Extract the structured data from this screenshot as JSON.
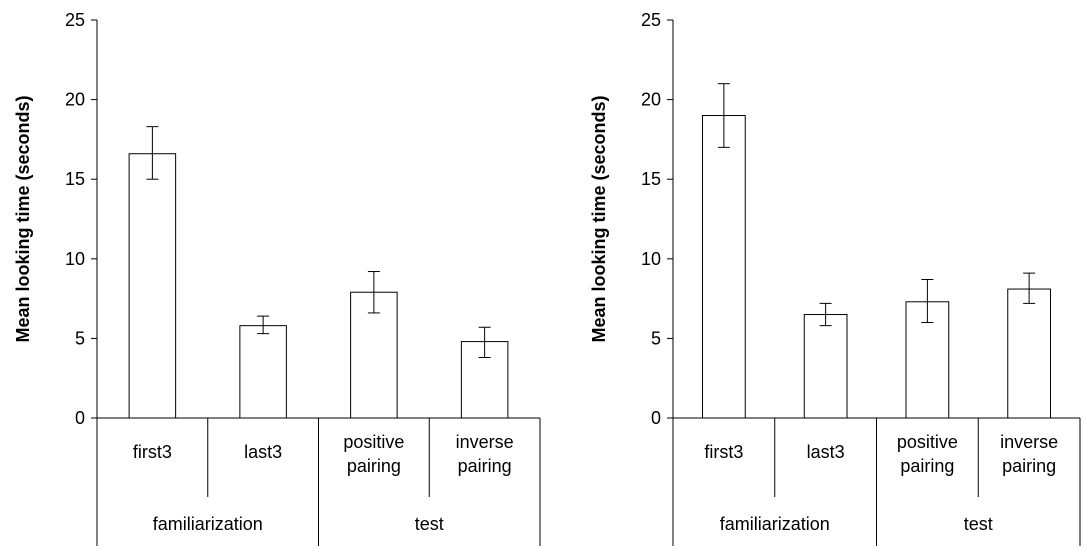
{
  "chart_data": [
    {
      "type": "bar",
      "title": "",
      "ylabel": "Mean looking time (seconds)",
      "xlabel": "",
      "ylim": [
        0,
        25
      ],
      "yticks": [
        "0",
        "5",
        "10",
        "15",
        "20",
        "25"
      ],
      "categories": [
        "first3",
        "last3",
        "positive pairing",
        "inverse pairing"
      ],
      "category_lines": [
        [
          "first3"
        ],
        [
          "last3"
        ],
        [
          "positive",
          "pairing"
        ],
        [
          "inverse",
          "pairing"
        ]
      ],
      "groups": [
        {
          "label": "familiarization",
          "categories": [
            "first3",
            "last3"
          ]
        },
        {
          "label": "test",
          "categories": [
            "positive pairing",
            "inverse pairing"
          ]
        }
      ],
      "values": [
        16.6,
        5.8,
        7.9,
        4.8
      ],
      "error_low": [
        15.0,
        5.3,
        6.6,
        3.8
      ],
      "error_high": [
        18.3,
        6.4,
        9.2,
        5.7
      ],
      "grid": false
    },
    {
      "type": "bar",
      "title": "",
      "ylabel": "Mean looking time (seconds)",
      "xlabel": "",
      "ylim": [
        0,
        25
      ],
      "yticks": [
        "0",
        "5",
        "10",
        "15",
        "20",
        "25"
      ],
      "categories": [
        "first3",
        "last3",
        "positive pairing",
        "inverse pairing"
      ],
      "category_lines": [
        [
          "first3"
        ],
        [
          "last3"
        ],
        [
          "positive",
          "pairing"
        ],
        [
          "inverse",
          "pairing"
        ]
      ],
      "groups": [
        {
          "label": "familiarization",
          "categories": [
            "first3",
            "last3"
          ]
        },
        {
          "label": "test",
          "categories": [
            "positive pairing",
            "inverse pairing"
          ]
        }
      ],
      "values": [
        19.0,
        6.5,
        7.3,
        8.1
      ],
      "error_low": [
        17.0,
        5.8,
        6.0,
        7.2
      ],
      "error_high": [
        21.0,
        7.2,
        8.7,
        9.1
      ],
      "grid": false
    }
  ]
}
